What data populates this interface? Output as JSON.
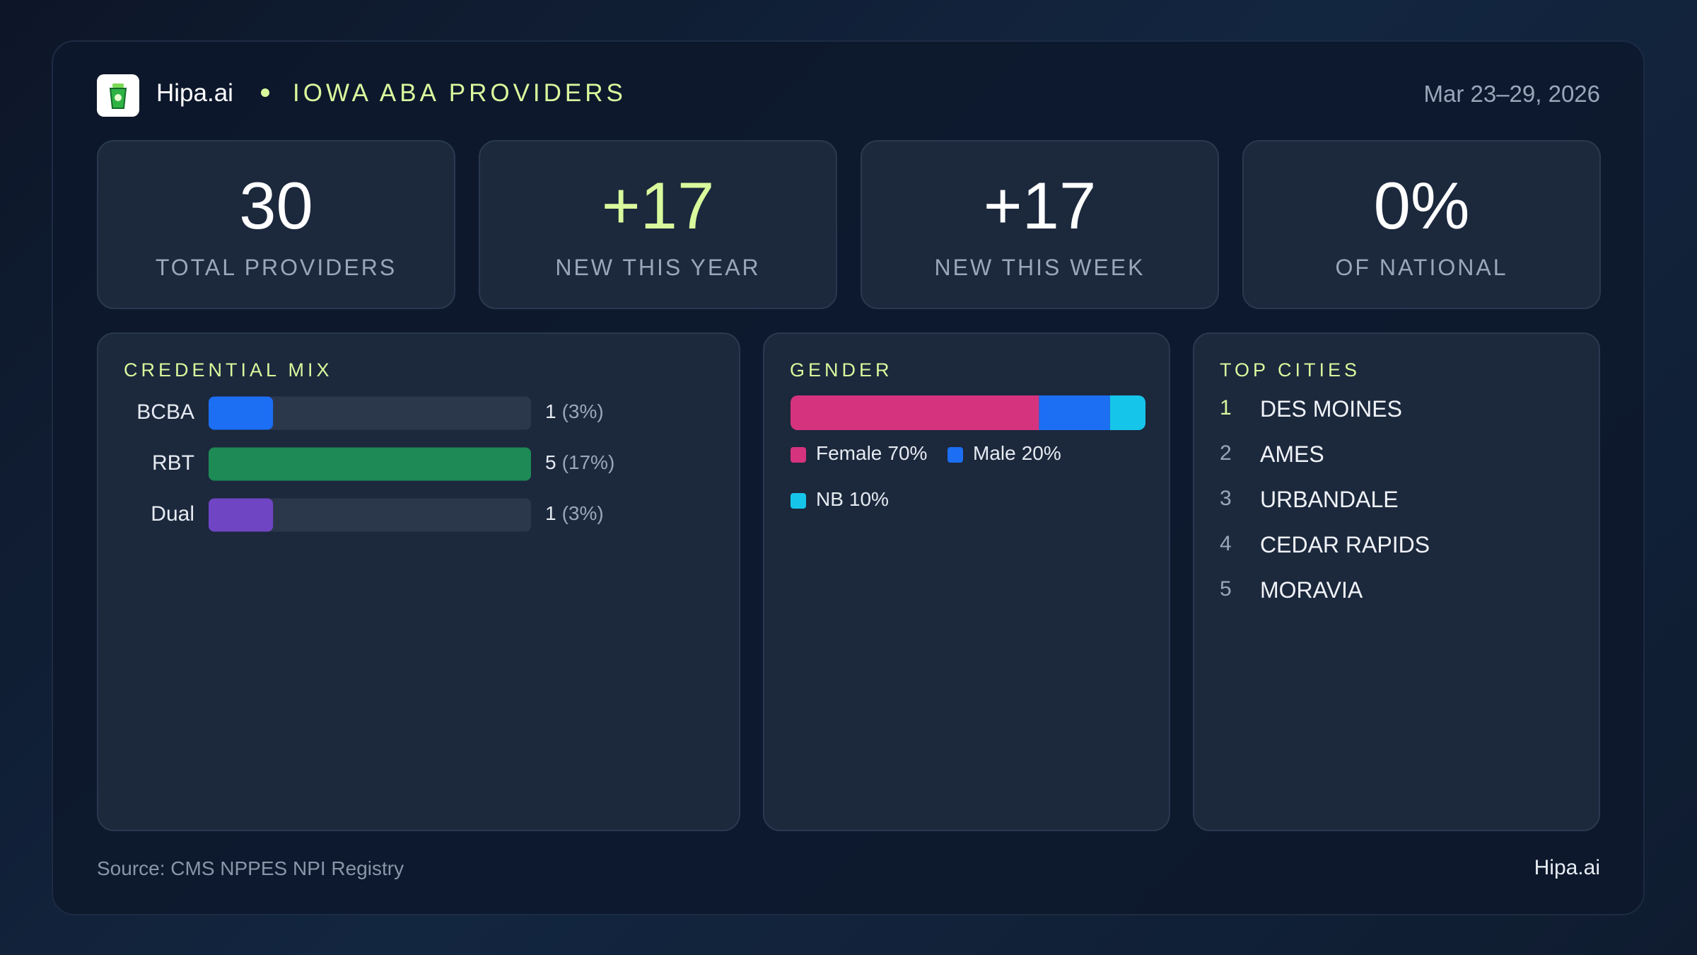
{
  "header": {
    "brand": "Hipa.ai",
    "title": "IOWA ABA PROVIDERS",
    "date": "Mar 23–29, 2026"
  },
  "stats": [
    {
      "value": "30",
      "label": "TOTAL PROVIDERS",
      "color": "#ffffff"
    },
    {
      "value": "+17",
      "label": "NEW THIS YEAR",
      "color": "#d9f99d"
    },
    {
      "value": "+17",
      "label": "NEW THIS WEEK",
      "color": "#ffffff"
    },
    {
      "value": "0%",
      "label": "OF NATIONAL",
      "color": "#ffffff"
    }
  ],
  "credential_mix": {
    "type": "bar",
    "title": "CREDENTIAL MIX",
    "categories": [
      "BCBA",
      "RBT",
      "Dual"
    ],
    "values": [
      1,
      5,
      1
    ],
    "percent_labels": [
      "(3%)",
      "(17%)",
      "(3%)"
    ],
    "colors": [
      "#1c6ef2",
      "#1e8a55",
      "#6f45c4"
    ]
  },
  "gender": {
    "type": "stacked-bar",
    "title": "GENDER",
    "categories": [
      "Female",
      "Male",
      "NB"
    ],
    "values": [
      70,
      20,
      10
    ],
    "value_labels": [
      "70%",
      "20%",
      "10%"
    ],
    "colors": [
      "#d6337f",
      "#1c6ef2",
      "#16c6ea"
    ]
  },
  "top_cities": {
    "title": "TOP CITIES",
    "items": [
      {
        "rank": 1,
        "city": "DES MOINES"
      },
      {
        "rank": 2,
        "city": "AMES"
      },
      {
        "rank": 3,
        "city": "URBANDALE"
      },
      {
        "rank": 4,
        "city": "CEDAR RAPIDS"
      },
      {
        "rank": 5,
        "city": "MORAVIA"
      }
    ]
  },
  "footer": {
    "source": "Source: CMS NPPES NPI Registry",
    "brand": "Hipa.ai"
  }
}
